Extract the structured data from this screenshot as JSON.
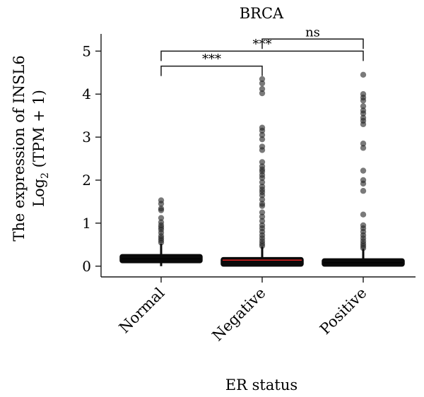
{
  "chart_data": {
    "type": "box",
    "title": "BRCA",
    "xlabel": "ER status",
    "ylabel_line1": "The expression of INSL6",
    "ylabel_line2_prefix": "Log",
    "ylabel_line2_sub": "2",
    "ylabel_line2_suffix": " (TPM + 1)",
    "ylim": [
      -0.25,
      5.4
    ],
    "yticks": [
      "0",
      "1",
      "2",
      "3",
      "4",
      "5"
    ],
    "ytick_values": [
      0,
      1,
      2,
      3,
      4,
      5
    ],
    "categories": [
      "Normal",
      "Negative",
      "Positive"
    ],
    "boxes": [
      {
        "q1": 0.08,
        "median": 0.17,
        "q3": 0.27,
        "whisker_low": 0.0,
        "whisker_high": 0.52,
        "median_color": "#000000"
      },
      {
        "q1": 0.0,
        "median": 0.14,
        "q3": 0.2,
        "whisker_low": 0.0,
        "whisker_high": 0.45,
        "median_color": "#e02020"
      },
      {
        "q1": 0.0,
        "median": 0.08,
        "q3": 0.17,
        "whisker_low": 0.0,
        "whisker_high": 0.4,
        "median_color": "#000000"
      }
    ],
    "outliers": [
      [
        0.55,
        0.6,
        0.65,
        0.7,
        0.78,
        0.85,
        0.9,
        0.95,
        1.02,
        1.12,
        1.3,
        1.34,
        1.45,
        1.53
      ],
      [
        0.47,
        0.52,
        0.58,
        0.65,
        0.72,
        0.8,
        0.88,
        0.95,
        1.05,
        1.15,
        1.25,
        1.4,
        1.45,
        1.55,
        1.65,
        1.72,
        1.78,
        1.85,
        1.95,
        2.05,
        2.12,
        2.2,
        2.25,
        2.32,
        2.42,
        2.7,
        2.78,
        2.95,
        3.05,
        3.15,
        3.22,
        4.02,
        4.12,
        4.25,
        4.35
      ],
      [
        0.42,
        0.47,
        0.52,
        0.58,
        0.65,
        0.72,
        0.8,
        0.88,
        0.95,
        1.2,
        1.75,
        1.92,
        2.0,
        2.22,
        2.75,
        2.85,
        3.3,
        3.38,
        3.45,
        3.55,
        3.62,
        3.72,
        3.85,
        3.92,
        4.0,
        4.45
      ]
    ],
    "significance": [
      {
        "from": 0,
        "to": 1,
        "label": "***",
        "y": 4.65
      },
      {
        "from": 0,
        "to": 2,
        "label": "***",
        "y": 5.0
      },
      {
        "from": 1,
        "to": 2,
        "label": "ns",
        "y": 5.28
      }
    ],
    "colors": {
      "box": "#0a0a0a",
      "outlier": "#222222",
      "axis": "#1a1a1a"
    }
  }
}
